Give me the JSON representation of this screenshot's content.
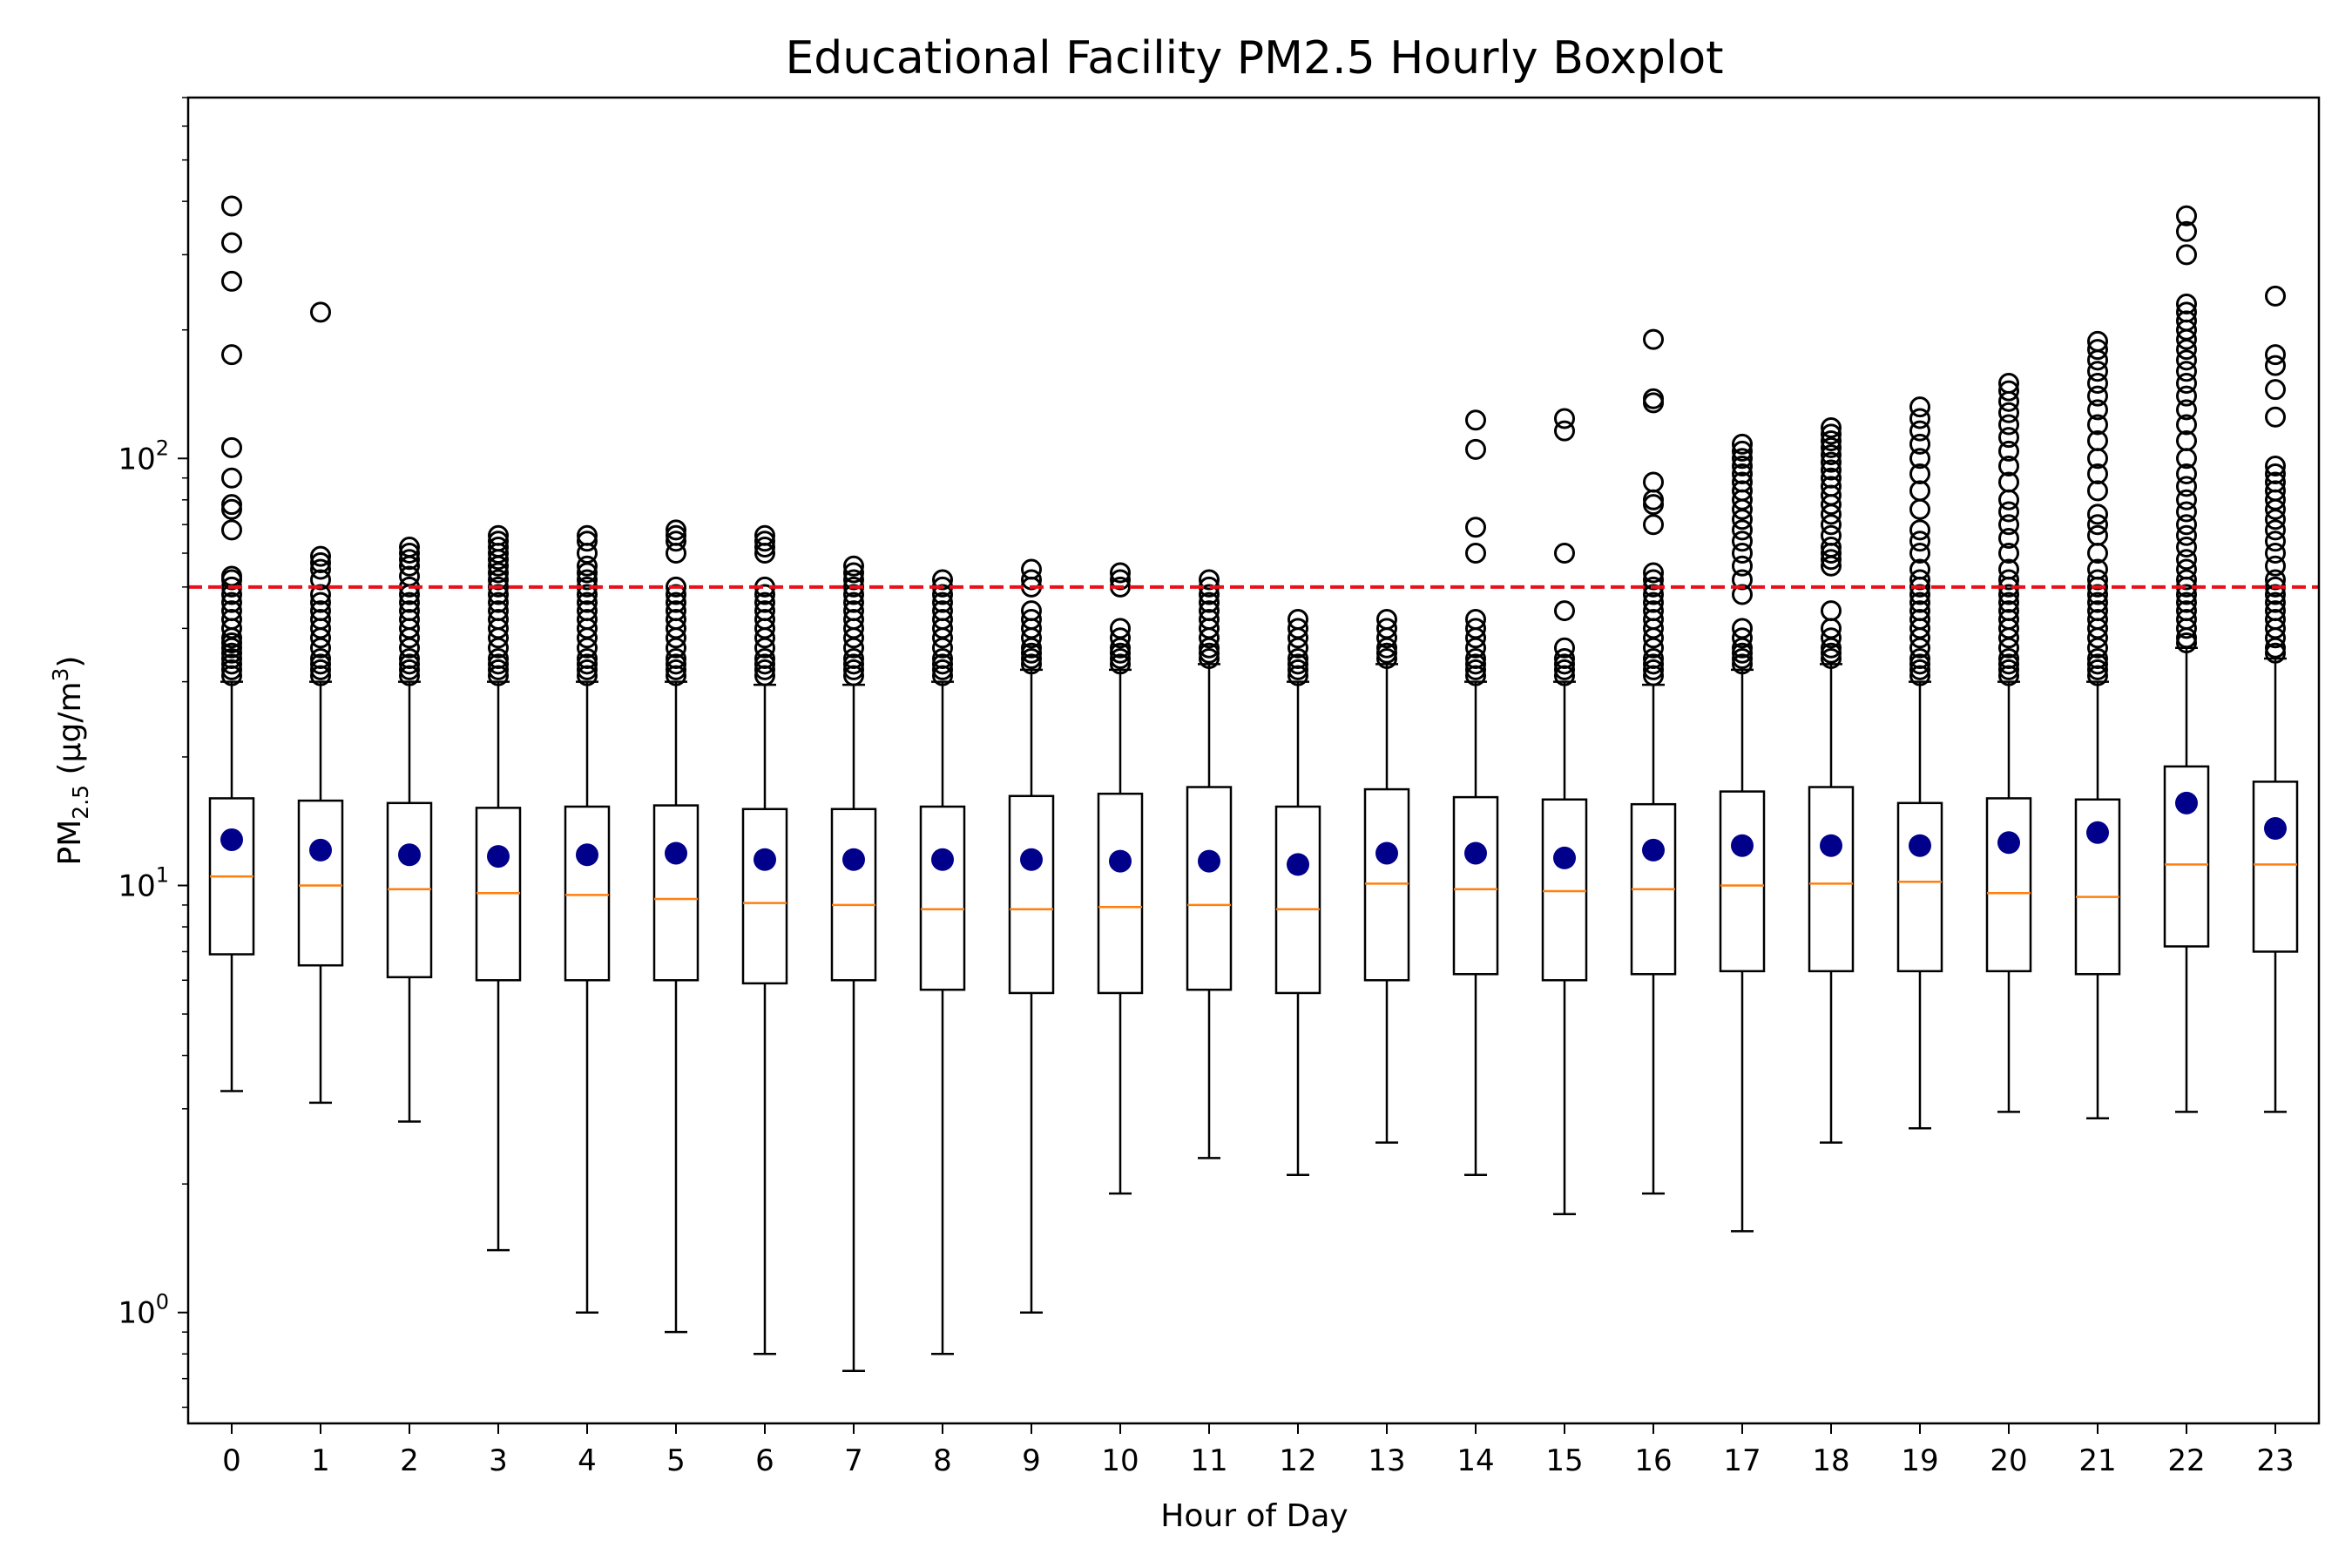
{
  "chart_data": {
    "type": "boxplot",
    "title": "Educational Facility PM2.5 Hourly Boxplot",
    "xlabel": "Hour of Day",
    "ylabel": {
      "base": "PM",
      "sub": "2.5",
      "unit_prefix": " (μg/m",
      "unit_sup": "3",
      "unit_suffix": ")"
    },
    "y_scale": "log",
    "ylim": [
      0.55,
      700
    ],
    "y_ticks": [
      {
        "value": 1,
        "base": "10",
        "exp": "0"
      },
      {
        "value": 10,
        "base": "10",
        "exp": "1"
      },
      {
        "value": 100,
        "base": "10",
        "exp": "2"
      }
    ],
    "reference_line": {
      "value": 50,
      "color": "#e8111a",
      "style": "dashed"
    },
    "colors": {
      "box": "#000000",
      "median": "#ff7f0e",
      "mean": "#00008b",
      "flier": "#000000"
    },
    "hours": [
      {
        "hour": "0",
        "whislo": 3.3,
        "q1": 6.9,
        "med": 10.5,
        "q3": 16.0,
        "whishi": 30.0,
        "mean": 12.8,
        "fliers": [
          31,
          32,
          33,
          34,
          35,
          36,
          37,
          38,
          40,
          42,
          44,
          46,
          48,
          50,
          52,
          53,
          68,
          76,
          78,
          90,
          106,
          175,
          260,
          320,
          390
        ]
      },
      {
        "hour": "1",
        "whislo": 3.1,
        "q1": 6.5,
        "med": 10.0,
        "q3": 15.8,
        "whishi": 30.0,
        "mean": 12.1,
        "fliers": [
          31,
          32,
          33,
          34,
          36,
          38,
          40,
          42,
          44,
          46,
          48,
          52,
          55,
          57,
          59,
          220
        ]
      },
      {
        "hour": "2",
        "whislo": 2.8,
        "q1": 6.1,
        "med": 9.8,
        "q3": 15.6,
        "whishi": 30.0,
        "mean": 11.8,
        "fliers": [
          31,
          32,
          33,
          34,
          36,
          38,
          40,
          42,
          44,
          46,
          48,
          50,
          53,
          56,
          58,
          60,
          62
        ]
      },
      {
        "hour": "3",
        "whislo": 1.4,
        "q1": 6.0,
        "med": 9.6,
        "q3": 15.2,
        "whishi": 30.0,
        "mean": 11.7,
        "fliers": [
          31,
          32,
          33,
          34,
          36,
          38,
          40,
          42,
          44,
          46,
          48,
          50,
          52,
          54,
          56,
          58,
          60,
          62,
          64,
          66
        ]
      },
      {
        "hour": "4",
        "whislo": 1.0,
        "q1": 6.0,
        "med": 9.5,
        "q3": 15.3,
        "whishi": 30.0,
        "mean": 11.8,
        "fliers": [
          31,
          32,
          33,
          34,
          36,
          38,
          40,
          42,
          44,
          46,
          48,
          50,
          52,
          54,
          56,
          60,
          64,
          66
        ]
      },
      {
        "hour": "5",
        "whislo": 0.9,
        "q1": 6.0,
        "med": 9.3,
        "q3": 15.4,
        "whishi": 30.0,
        "mean": 11.9,
        "fliers": [
          31,
          32,
          33,
          34,
          36,
          38,
          40,
          42,
          44,
          46,
          48,
          50,
          60,
          64,
          66,
          68
        ]
      },
      {
        "hour": "6",
        "whislo": 0.8,
        "q1": 5.9,
        "med": 9.1,
        "q3": 15.1,
        "whishi": 29.5,
        "mean": 11.5,
        "fliers": [
          31,
          32,
          33,
          34,
          36,
          38,
          40,
          42,
          44,
          46,
          48,
          50,
          60,
          62,
          64,
          66
        ]
      },
      {
        "hour": "7",
        "whislo": 0.73,
        "q1": 6.0,
        "med": 9.0,
        "q3": 15.1,
        "whishi": 29.5,
        "mean": 11.5,
        "fliers": [
          31,
          32,
          33,
          34,
          36,
          38,
          40,
          42,
          44,
          46,
          48,
          50,
          52,
          54,
          56
        ]
      },
      {
        "hour": "8",
        "whislo": 0.8,
        "q1": 5.7,
        "med": 8.8,
        "q3": 15.3,
        "whishi": 30.0,
        "mean": 11.5,
        "fliers": [
          31,
          32,
          33,
          34,
          36,
          38,
          40,
          42,
          44,
          46,
          48,
          50,
          52
        ]
      },
      {
        "hour": "9",
        "whislo": 1.0,
        "q1": 5.6,
        "med": 8.8,
        "q3": 16.2,
        "whishi": 32.0,
        "mean": 11.5,
        "fliers": [
          33,
          34,
          35,
          36,
          38,
          40,
          42,
          44,
          50,
          52,
          55
        ]
      },
      {
        "hour": "10",
        "whislo": 1.9,
        "q1": 5.6,
        "med": 8.9,
        "q3": 16.4,
        "whishi": 32.0,
        "mean": 11.4,
        "fliers": [
          33,
          34,
          35,
          36,
          38,
          40,
          50,
          52,
          54
        ]
      },
      {
        "hour": "11",
        "whislo": 2.3,
        "q1": 5.7,
        "med": 9.0,
        "q3": 17.0,
        "whishi": 33.0,
        "mean": 11.4,
        "fliers": [
          34,
          35,
          36,
          38,
          40,
          42,
          44,
          46,
          48,
          50,
          52
        ]
      },
      {
        "hour": "12",
        "whislo": 2.1,
        "q1": 5.6,
        "med": 8.8,
        "q3": 15.3,
        "whishi": 30.0,
        "mean": 11.2,
        "fliers": [
          31,
          32,
          33,
          34,
          36,
          38,
          40,
          42
        ]
      },
      {
        "hour": "13",
        "whislo": 2.5,
        "q1": 6.0,
        "med": 10.1,
        "q3": 16.8,
        "whishi": 33.0,
        "mean": 11.9,
        "fliers": [
          34,
          35,
          36,
          38,
          40,
          42
        ]
      },
      {
        "hour": "14",
        "whislo": 2.1,
        "q1": 6.2,
        "med": 9.8,
        "q3": 16.1,
        "whishi": 30.0,
        "mean": 11.9,
        "fliers": [
          31,
          32,
          33,
          34,
          36,
          38,
          40,
          42,
          60,
          69,
          105,
          123
        ]
      },
      {
        "hour": "15",
        "whislo": 1.7,
        "q1": 6.0,
        "med": 9.7,
        "q3": 15.9,
        "whishi": 30.0,
        "mean": 11.6,
        "fliers": [
          31,
          32,
          33,
          34,
          36,
          44,
          60,
          116,
          124
        ]
      },
      {
        "hour": "16",
        "whislo": 1.9,
        "q1": 6.2,
        "med": 9.8,
        "q3": 15.5,
        "whishi": 29.5,
        "mean": 12.1,
        "fliers": [
          31,
          32,
          33,
          34,
          36,
          38,
          40,
          42,
          44,
          46,
          48,
          50,
          52,
          54,
          70,
          78,
          80,
          88,
          135,
          138,
          190
        ]
      },
      {
        "hour": "17",
        "whislo": 1.55,
        "q1": 6.3,
        "med": 10.0,
        "q3": 16.6,
        "whishi": 32.0,
        "mean": 12.4,
        "fliers": [
          33,
          34,
          35,
          36,
          38,
          40,
          48,
          52,
          56,
          60,
          64,
          68,
          72,
          76,
          80,
          84,
          88,
          92,
          96,
          100,
          104,
          108
        ]
      },
      {
        "hour": "18",
        "whislo": 2.5,
        "q1": 6.3,
        "med": 10.1,
        "q3": 17.0,
        "whishi": 33.0,
        "mean": 12.4,
        "fliers": [
          34,
          35,
          36,
          38,
          40,
          44,
          56,
          58,
          60,
          62,
          66,
          70,
          74,
          78,
          82,
          86,
          90,
          94,
          98,
          102,
          106,
          110,
          114,
          118
        ]
      },
      {
        "hour": "19",
        "whislo": 2.7,
        "q1": 6.3,
        "med": 10.2,
        "q3": 15.6,
        "whishi": 30.0,
        "mean": 12.4,
        "fliers": [
          31,
          32,
          33,
          34,
          36,
          38,
          40,
          42,
          44,
          46,
          48,
          50,
          52,
          55,
          60,
          64,
          68,
          76,
          84,
          92,
          100,
          108,
          116,
          124,
          132
        ]
      },
      {
        "hour": "20",
        "whislo": 2.95,
        "q1": 6.3,
        "med": 9.6,
        "q3": 16.0,
        "whishi": 30.0,
        "mean": 12.6,
        "fliers": [
          31,
          32,
          33,
          34,
          36,
          38,
          40,
          42,
          44,
          46,
          48,
          50,
          52,
          55,
          60,
          65,
          70,
          75,
          80,
          88,
          96,
          104,
          112,
          120,
          128,
          136,
          144,
          150
        ]
      },
      {
        "hour": "21",
        "whislo": 2.85,
        "q1": 6.2,
        "med": 9.4,
        "q3": 15.9,
        "whishi": 30.0,
        "mean": 13.3,
        "fliers": [
          31,
          32,
          33,
          34,
          36,
          38,
          40,
          42,
          44,
          46,
          48,
          50,
          52,
          55,
          60,
          66,
          70,
          74,
          84,
          92,
          100,
          110,
          120,
          130,
          140,
          150,
          160,
          170,
          180,
          188
        ]
      },
      {
        "hour": "22",
        "whislo": 2.95,
        "q1": 7.2,
        "med": 11.2,
        "q3": 19.0,
        "whishi": 36.0,
        "mean": 15.6,
        "fliers": [
          37,
          38,
          40,
          42,
          44,
          46,
          48,
          50,
          52,
          55,
          58,
          62,
          66,
          70,
          75,
          80,
          86,
          92,
          100,
          110,
          120,
          130,
          140,
          150,
          160,
          170,
          180,
          190,
          200,
          210,
          220,
          230,
          300,
          340,
          370
        ]
      },
      {
        "hour": "23",
        "whislo": 2.95,
        "q1": 7.0,
        "med": 11.2,
        "q3": 17.5,
        "whishi": 34.0,
        "mean": 13.6,
        "fliers": [
          35,
          36,
          38,
          40,
          42,
          44,
          46,
          48,
          50,
          52,
          56,
          60,
          64,
          68,
          72,
          76,
          80,
          84,
          88,
          92,
          96,
          125,
          145,
          165,
          175,
          240
        ]
      }
    ]
  }
}
